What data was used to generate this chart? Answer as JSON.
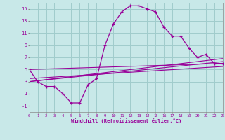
{
  "bg_color": "#c8e8e8",
  "grid_color": "#a0cccc",
  "line_color": "#990099",
  "hours": [
    0,
    1,
    2,
    3,
    4,
    5,
    6,
    7,
    8,
    9,
    10,
    11,
    12,
    13,
    14,
    15,
    16,
    17,
    18,
    19,
    20,
    21,
    22,
    23
  ],
  "windchill": [
    5,
    3,
    2.2,
    2.2,
    1,
    -0.5,
    -0.5,
    2.5,
    3.5,
    9,
    12.5,
    14.5,
    15.5,
    15.5,
    15,
    14.5,
    12,
    10.5,
    10.5,
    8.5,
    7,
    7.5,
    6,
    6
  ],
  "diag_lines": [
    {
      "x": [
        0,
        23
      ],
      "y": [
        5.0,
        6.0
      ]
    },
    {
      "x": [
        0,
        23
      ],
      "y": [
        3.0,
        6.3
      ]
    },
    {
      "x": [
        0,
        23
      ],
      "y": [
        3.5,
        5.5
      ]
    },
    {
      "x": [
        0,
        23
      ],
      "y": [
        3.0,
        6.8
      ]
    }
  ],
  "xlabel": "Windchill (Refroidissement éolien,°C)",
  "xmin": 0,
  "xmax": 23,
  "ymin": -2,
  "ymax": 16,
  "yticks": [
    -1,
    1,
    3,
    5,
    7,
    9,
    11,
    13,
    15
  ],
  "xticks": [
    0,
    1,
    2,
    3,
    4,
    5,
    6,
    7,
    8,
    9,
    10,
    11,
    12,
    13,
    14,
    15,
    16,
    17,
    18,
    19,
    20,
    21,
    22,
    23
  ]
}
